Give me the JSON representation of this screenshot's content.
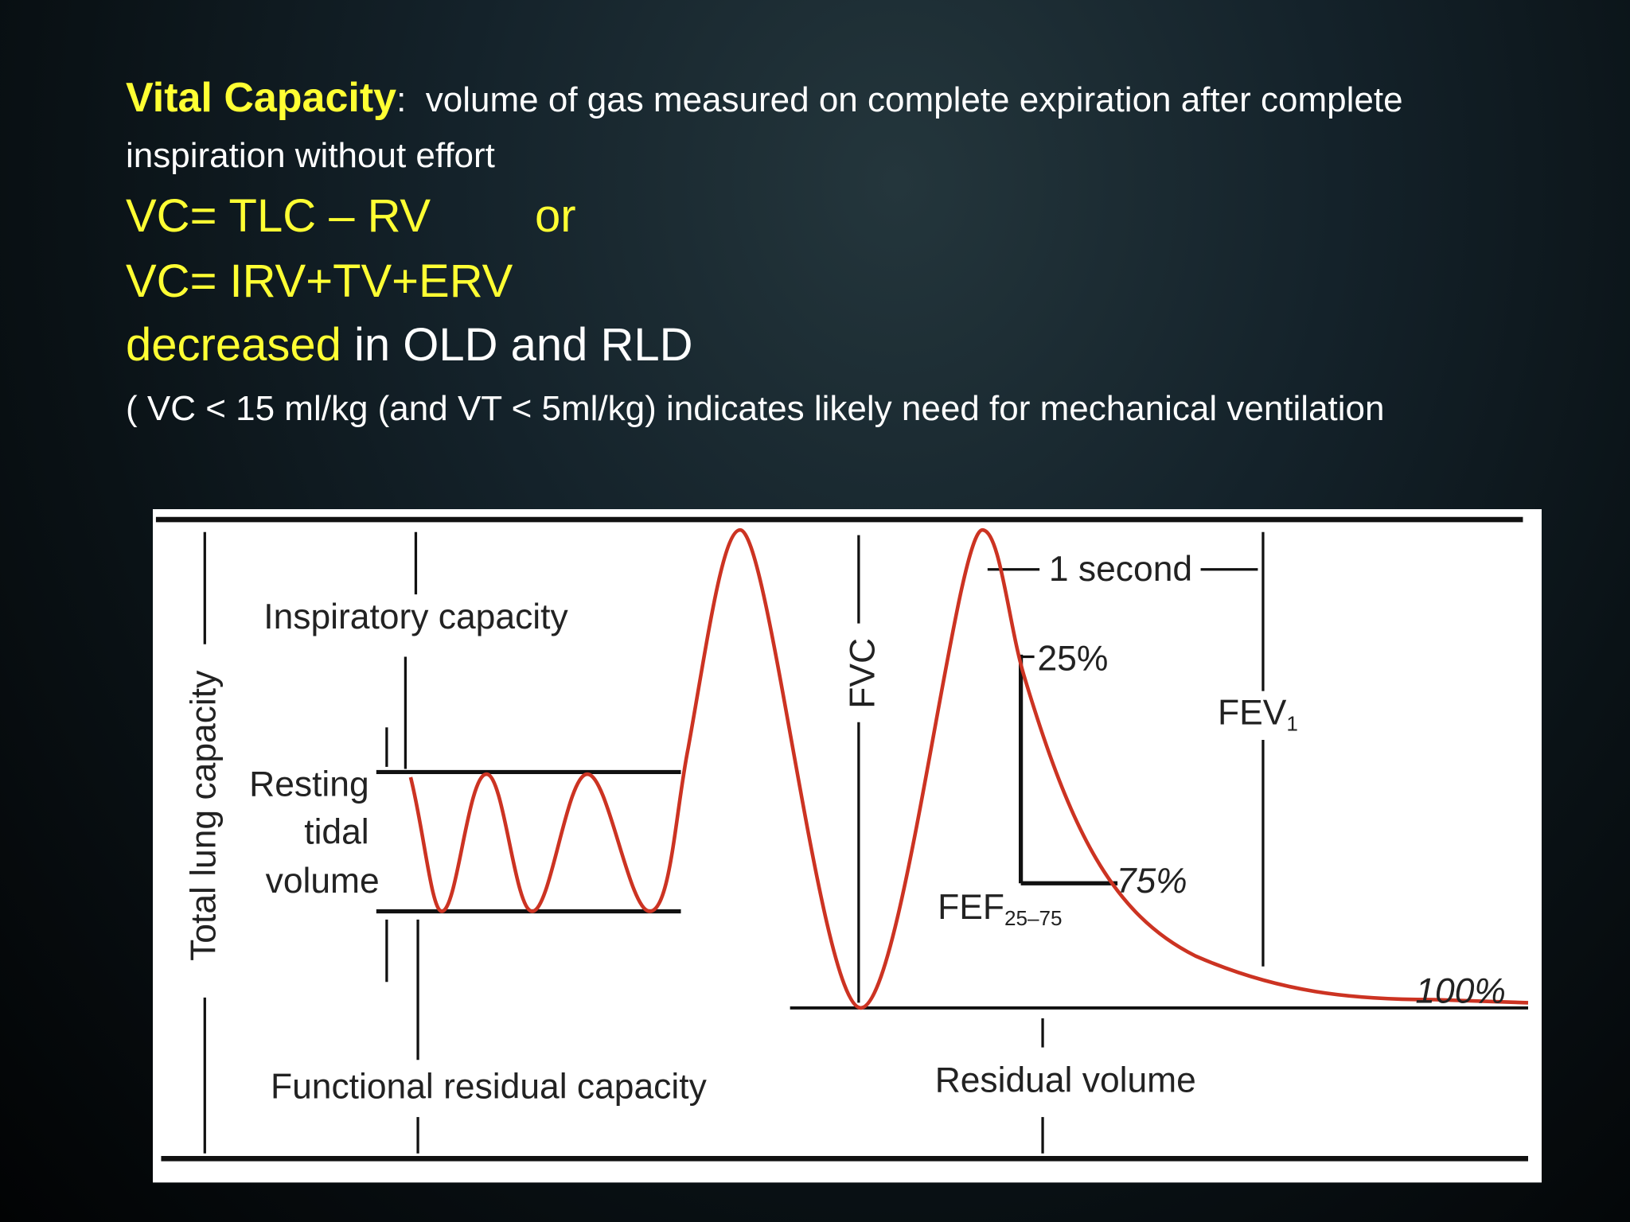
{
  "heading": {
    "term": "Vital Capacity",
    "colon": ":",
    "definition": "volume of gas measured on complete expiration after complete inspiration without effort"
  },
  "formulas": {
    "first": "VC= TLC – RV",
    "or": "or",
    "second": "VC= IRV+TV+ERV"
  },
  "decreased": {
    "highlight": "decreased",
    "rest": "in OLD and RLD"
  },
  "note": "( VC < 15 ml/kg (and VT < 5ml/kg) indicates likely need for mechanical ventilation",
  "diagram": {
    "total_lung_capacity": "Total lung capacity",
    "inspiratory_capacity": "Inspiratory capacity",
    "resting_tidal_volume": [
      "Resting",
      "tidal",
      "volume"
    ],
    "functional_residual_capacity": "Functional residual capacity",
    "fvc": "FVC",
    "one_second": "1 second",
    "fev": {
      "text": "FEV",
      "subscript": "1"
    },
    "pct_25": "25%",
    "pct_75": "75%",
    "pct_100": "100%",
    "fef": {
      "text": "FEF",
      "subscript": "25–75"
    },
    "residual_volume": "Residual volume"
  }
}
